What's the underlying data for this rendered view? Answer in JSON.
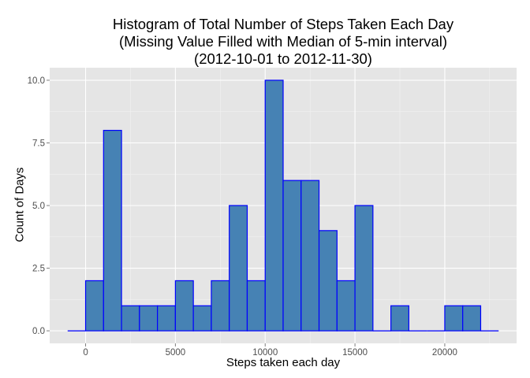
{
  "chart_data": {
    "type": "bar",
    "title": [
      "Histogram of Total Number of Steps Taken Each Day",
      "(Missing Value Filled with Median of 5-min interval)",
      "(2012-10-01 to 2012-11-30)"
    ],
    "xlabel": "Steps taken each day",
    "ylabel": "Count of Days",
    "binwidth": 1000,
    "bins": [
      {
        "x0": -1000,
        "x1": 0,
        "count": 0
      },
      {
        "x0": 0,
        "x1": 1000,
        "count": 2
      },
      {
        "x0": 1000,
        "x1": 2000,
        "count": 8
      },
      {
        "x0": 2000,
        "x1": 3000,
        "count": 1
      },
      {
        "x0": 3000,
        "x1": 4000,
        "count": 1
      },
      {
        "x0": 4000,
        "x1": 5000,
        "count": 1
      },
      {
        "x0": 5000,
        "x1": 6000,
        "count": 2
      },
      {
        "x0": 6000,
        "x1": 7000,
        "count": 1
      },
      {
        "x0": 7000,
        "x1": 8000,
        "count": 2
      },
      {
        "x0": 8000,
        "x1": 9000,
        "count": 5
      },
      {
        "x0": 9000,
        "x1": 10000,
        "count": 2
      },
      {
        "x0": 10000,
        "x1": 11000,
        "count": 10
      },
      {
        "x0": 11000,
        "x1": 12000,
        "count": 6
      },
      {
        "x0": 12000,
        "x1": 13000,
        "count": 6
      },
      {
        "x0": 13000,
        "x1": 14000,
        "count": 4
      },
      {
        "x0": 14000,
        "x1": 15000,
        "count": 2
      },
      {
        "x0": 15000,
        "x1": 16000,
        "count": 5
      },
      {
        "x0": 16000,
        "x1": 17000,
        "count": 0
      },
      {
        "x0": 17000,
        "x1": 18000,
        "count": 1
      },
      {
        "x0": 18000,
        "x1": 19000,
        "count": 0
      },
      {
        "x0": 19000,
        "x1": 20000,
        "count": 0
      },
      {
        "x0": 20000,
        "x1": 21000,
        "count": 1
      },
      {
        "x0": 21000,
        "x1": 22000,
        "count": 1
      },
      {
        "x0": 22000,
        "x1": 23000,
        "count": 0
      }
    ],
    "xlim": [
      -2000,
      24000
    ],
    "ylim": [
      -0.5,
      10.5
    ],
    "x_ticks": [
      0,
      5000,
      10000,
      15000,
      20000
    ],
    "x_tick_labels": [
      "0",
      "5000",
      "10000",
      "15000",
      "20000"
    ],
    "y_ticks": [
      0,
      2.5,
      5,
      7.5,
      10
    ],
    "y_tick_labels": [
      "0.0",
      "2.5",
      "5.0",
      "7.5",
      "10.0"
    ],
    "grid": true,
    "legend": "none",
    "colors": {
      "panel_background": "#e5e5e5",
      "grid_major": "#ffffff",
      "grid_minor": "#f2f2f2",
      "bar_fill": "#4682b4",
      "bar_outline": "#0000ff",
      "tick_label": "#4d4d4d",
      "tick_mark": "#7f7f7f"
    }
  }
}
